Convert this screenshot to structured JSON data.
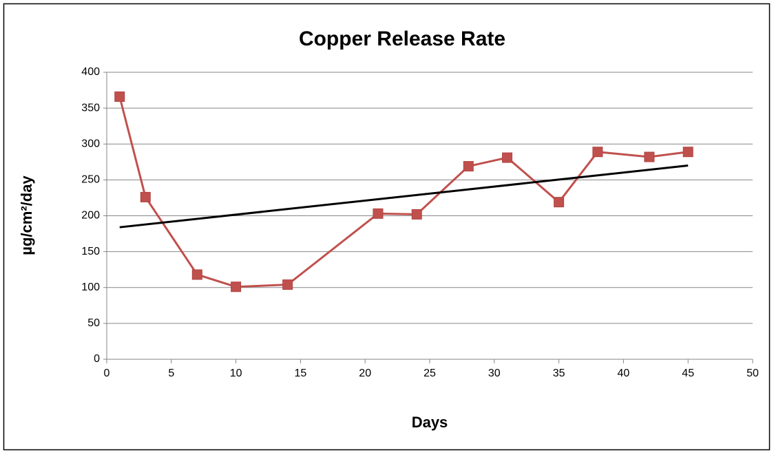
{
  "chart_data": {
    "type": "line",
    "title": "Copper Release Rate",
    "xlabel": "Days",
    "ylabel": "µg/cm²/day",
    "x": [
      1,
      3,
      7,
      10,
      14,
      21,
      24,
      28,
      31,
      35,
      38,
      42,
      45
    ],
    "values": [
      366,
      226,
      118,
      101,
      104,
      203,
      202,
      269,
      281,
      219,
      289,
      282,
      289
    ],
    "color": "#c0504d",
    "trendline": {
      "x": [
        1,
        45
      ],
      "values": [
        184,
        270
      ],
      "color": "#000000"
    },
    "xlim": [
      0,
      50
    ],
    "xticks": [
      0,
      5,
      10,
      15,
      20,
      25,
      30,
      35,
      40,
      45,
      50
    ],
    "ylim": [
      0,
      400
    ],
    "yticks": [
      0,
      50,
      100,
      150,
      200,
      250,
      300,
      350,
      400
    ],
    "grid": true
  }
}
